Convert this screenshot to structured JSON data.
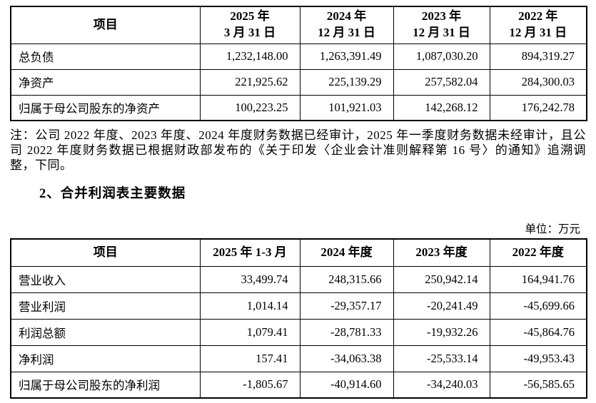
{
  "note": "注：公司 2022 年度、2023 年度、2024 年度财务数据已经审计，2025 年一季度财务数据未经审计，且公司 2022 年度财务数据已根据财政部发布的《关于印发〈企业会计准则解释第 16 号〉的通知》追溯调整，下同。",
  "section_heading": "2、合并利润表主要数据",
  "unit_label": "单位：万元",
  "balance_table": {
    "headers": [
      "项目",
      "2025 年\n3 月 31 日",
      "2024 年\n12 月 31 日",
      "2023 年\n12 月 31 日",
      "2022 年\n12 月 31 日"
    ],
    "rows": [
      {
        "label": "总负债",
        "values": [
          "1,232,148.00",
          "1,263,391.49",
          "1,087,030.20",
          "894,319.27"
        ]
      },
      {
        "label": "净资产",
        "values": [
          "221,925.62",
          "225,139.29",
          "257,582.04",
          "284,300.03"
        ]
      },
      {
        "label": "归属于母公司股东的净资产",
        "values": [
          "100,223.25",
          "101,921.03",
          "142,268.12",
          "176,242.78"
        ]
      }
    ]
  },
  "income_table": {
    "headers": [
      "项目",
      "2025 年 1-3 月",
      "2024 年度",
      "2023 年度",
      "2022 年度"
    ],
    "rows": [
      {
        "label": "营业收入",
        "values": [
          "33,499.74",
          "248,315.66",
          "250,942.14",
          "164,941.76"
        ]
      },
      {
        "label": "营业利润",
        "values": [
          "1,014.14",
          "-29,357.17",
          "-20,241.49",
          "-45,699.66"
        ]
      },
      {
        "label": "利润总额",
        "values": [
          "1,079.41",
          "-28,781.33",
          "-19,932.26",
          "-45,864.76"
        ]
      },
      {
        "label": "净利润",
        "values": [
          "157.41",
          "-34,063.38",
          "-25,533.14",
          "-49,953.43"
        ]
      },
      {
        "label": "归属于母公司股东的净利润",
        "values": [
          "-1,805.67",
          "-40,914.60",
          "-34,240.03",
          "-56,585.65"
        ]
      }
    ]
  }
}
